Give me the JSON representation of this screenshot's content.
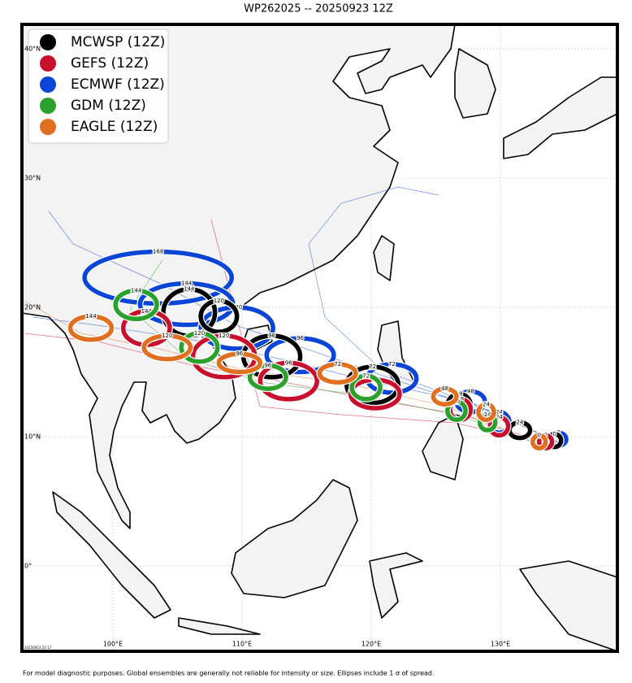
{
  "title": "WP262025 -- 20250923 12Z",
  "legend": [
    {
      "name": "MCWSP (12Z)",
      "color": "#000000"
    },
    {
      "name": "GEFS (12Z)",
      "color": "#c8102e"
    },
    {
      "name": "ECMWF (12Z)",
      "color": "#0b45d6"
    },
    {
      "name": "GDM (12Z)",
      "color": "#2ca02c"
    },
    {
      "name": "EAGLE (12Z)",
      "color": "#e07020"
    }
  ],
  "xticks": [
    {
      "value": 100,
      "label": "100°E"
    },
    {
      "value": 110,
      "label": "110°E"
    },
    {
      "value": 120,
      "label": "120°E"
    },
    {
      "value": 130,
      "label": "130°E"
    }
  ],
  "yticks": [
    {
      "value": 0,
      "label": "0°"
    },
    {
      "value": 10,
      "label": "10°N"
    },
    {
      "value": 20,
      "label": "20°N"
    },
    {
      "value": 30,
      "label": "30°N"
    },
    {
      "value": 40,
      "label": "40°N"
    }
  ],
  "ellipses": [
    {
      "model": 2,
      "hour": 168,
      "lon": 103.5,
      "lat": 22.3,
      "rx": 5.7,
      "ry": 2.0
    },
    {
      "model": 2,
      "hour": 144,
      "lon": 105.7,
      "lat": 20.25,
      "rx": 3.6,
      "ry": 1.6
    },
    {
      "model": 2,
      "hour": 120,
      "lon": 109.6,
      "lat": 18.4,
      "rx": 2.8,
      "ry": 1.6
    },
    {
      "model": 2,
      "hour": 96,
      "lon": 114.5,
      "lat": 16.3,
      "rx": 2.6,
      "ry": 1.3
    },
    {
      "model": 2,
      "hour": 72,
      "lon": 121.6,
      "lat": 14.5,
      "rx": 1.9,
      "ry": 1.1
    },
    {
      "model": 2,
      "hour": 48,
      "lon": 127.7,
      "lat": 12.7,
      "rx": 1.1,
      "ry": 0.8
    },
    {
      "model": 2,
      "hour": 24,
      "lon": 129.9,
      "lat": 11.1,
      "rx": 0.8,
      "ry": 0.8
    },
    {
      "model": 2,
      "hour": 0,
      "lon": 134.5,
      "lat": 9.8,
      "rx": 0.6,
      "ry": 0.5
    },
    {
      "model": 0,
      "hour": 144,
      "lon": 105.9,
      "lat": 19.6,
      "rx": 2.0,
      "ry": 1.8
    },
    {
      "model": 0,
      "hour": 120,
      "lon": 108.2,
      "lat": 19.3,
      "rx": 1.4,
      "ry": 1.2
    },
    {
      "model": 0,
      "hour": 96,
      "lon": 112.3,
      "lat": 16.2,
      "rx": 2.2,
      "ry": 1.6
    },
    {
      "model": 0,
      "hour": 72,
      "lon": 120.1,
      "lat": 14.0,
      "rx": 2.0,
      "ry": 1.4
    },
    {
      "model": 0,
      "hour": 48,
      "lon": 126.8,
      "lat": 12.4,
      "rx": 0.9,
      "ry": 0.9
    },
    {
      "model": 0,
      "hour": 24,
      "lon": 131.5,
      "lat": 10.5,
      "rx": 0.8,
      "ry": 0.6
    },
    {
      "model": 0,
      "hour": 0,
      "lon": 134.2,
      "lat": 9.7,
      "rx": 0.5,
      "ry": 0.5
    },
    {
      "model": 1,
      "hour": 144,
      "lon": 102.6,
      "lat": 18.4,
      "rx": 1.8,
      "ry": 1.3
    },
    {
      "model": 1,
      "hour": 120,
      "lon": 108.6,
      "lat": 16.2,
      "rx": 2.4,
      "ry": 1.6
    },
    {
      "model": 1,
      "hour": 96,
      "lon": 113.6,
      "lat": 14.3,
      "rx": 2.2,
      "ry": 1.4
    },
    {
      "model": 1,
      "hour": 72,
      "lon": 120.3,
      "lat": 13.3,
      "rx": 1.9,
      "ry": 1.1
    },
    {
      "model": 1,
      "hour": 48,
      "lon": 126.9,
      "lat": 12.1,
      "rx": 0.8,
      "ry": 0.8
    },
    {
      "model": 1,
      "hour": 24,
      "lon": 129.9,
      "lat": 10.8,
      "rx": 0.7,
      "ry": 0.7
    },
    {
      "model": 1,
      "hour": 0,
      "lon": 133.5,
      "lat": 9.6,
      "rx": 0.5,
      "ry": 0.5
    },
    {
      "model": 3,
      "hour": 144,
      "lon": 101.8,
      "lat": 20.2,
      "rx": 1.6,
      "ry": 1.1
    },
    {
      "model": 3,
      "hour": 120,
      "lon": 106.7,
      "lat": 16.9,
      "rx": 1.4,
      "ry": 1.1
    },
    {
      "model": 3,
      "hour": 96,
      "lon": 112.0,
      "lat": 14.6,
      "rx": 1.4,
      "ry": 0.9
    },
    {
      "model": 3,
      "hour": 72,
      "lon": 119.6,
      "lat": 13.8,
      "rx": 1.1,
      "ry": 0.9
    },
    {
      "model": 3,
      "hour": 48,
      "lon": 126.6,
      "lat": 12.0,
      "rx": 0.7,
      "ry": 0.7
    },
    {
      "model": 3,
      "hour": 24,
      "lon": 129.0,
      "lat": 11.1,
      "rx": 0.6,
      "ry": 0.6
    },
    {
      "model": 4,
      "hour": 144,
      "lon": 98.3,
      "lat": 18.4,
      "rx": 1.6,
      "ry": 0.9
    },
    {
      "model": 4,
      "hour": 120,
      "lon": 104.2,
      "lat": 16.9,
      "rx": 1.8,
      "ry": 0.9
    },
    {
      "model": 4,
      "hour": 96,
      "lon": 109.8,
      "lat": 15.7,
      "rx": 1.6,
      "ry": 0.7
    },
    {
      "model": 4,
      "hour": 72,
      "lon": 117.4,
      "lat": 14.9,
      "rx": 1.4,
      "ry": 0.7
    },
    {
      "model": 4,
      "hour": 48,
      "lon": 125.7,
      "lat": 13.1,
      "rx": 0.9,
      "ry": 0.6
    },
    {
      "model": 4,
      "hour": 24,
      "lon": 128.9,
      "lat": 11.9,
      "rx": 0.6,
      "ry": 0.6
    },
    {
      "model": 4,
      "hour": 0,
      "lon": 133.0,
      "lat": 9.6,
      "rx": 0.5,
      "ry": 0.5
    }
  ],
  "timestamp": "20250923 22:17",
  "footer": "For model diagnostic purposes. Global ensembles are generally not reliable for intensity or size. Ellipses include 1 σ of spread."
}
